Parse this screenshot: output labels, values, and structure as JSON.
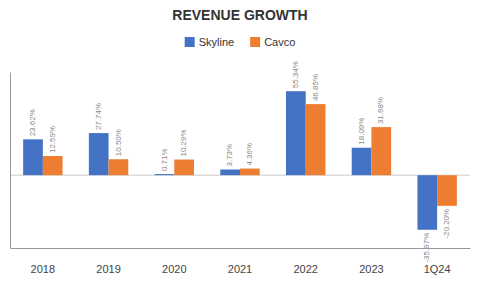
{
  "chart_data": {
    "type": "bar",
    "title": "REVENUE GROWTH",
    "categories": [
      "2018",
      "2019",
      "2020",
      "2021",
      "2022",
      "2023",
      "1Q24"
    ],
    "series": [
      {
        "name": "Skyline",
        "color": "#4472C4",
        "values": [
          23.62,
          27.74,
          0.71,
          3.73,
          55.34,
          18.09,
          -35.97
        ],
        "value_labels": [
          "23.62%",
          "27.74%",
          "0.71%",
          "3.73%",
          "55.34%",
          "18.09%",
          "-35.97%"
        ]
      },
      {
        "name": "Cavco",
        "color": "#ED7D31",
        "values": [
          12.59,
          10.5,
          10.29,
          4.36,
          46.85,
          31.68,
          -20.2
        ],
        "value_labels": [
          "12.59%",
          "10.50%",
          "10.29%",
          "4.36%",
          "46.85%",
          "31.68%",
          "-20.20%"
        ]
      }
    ],
    "ylim": [
      -48,
      68
    ],
    "legend": "top",
    "data_labels": true,
    "tick_labels": "x"
  }
}
